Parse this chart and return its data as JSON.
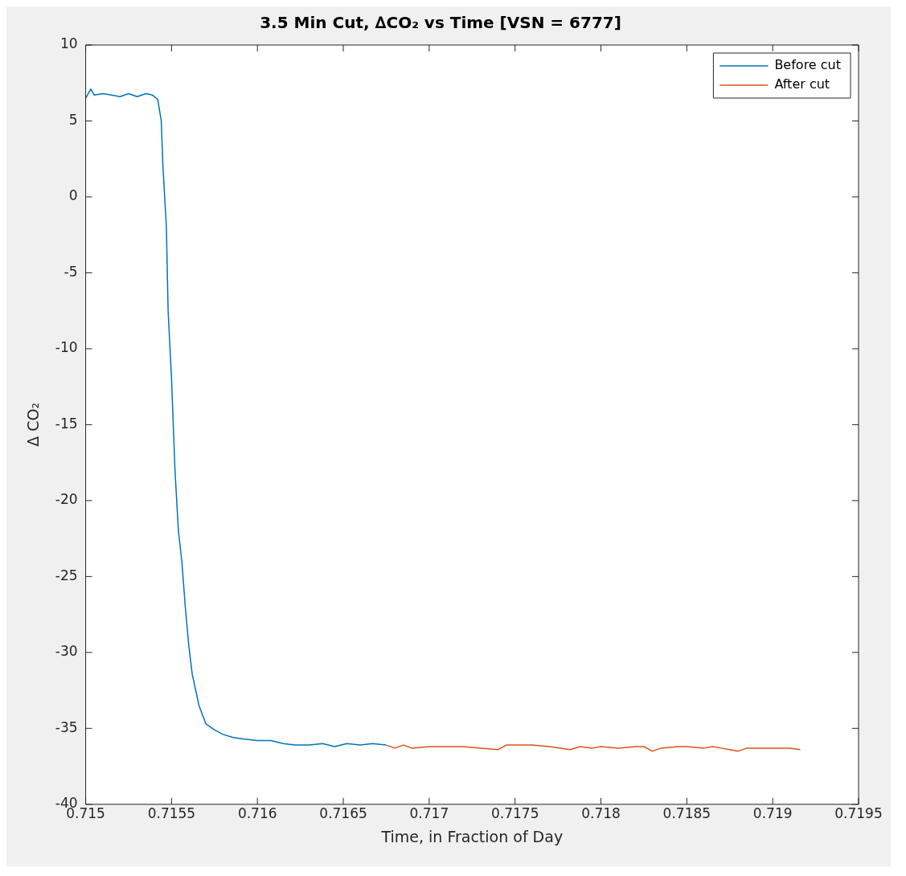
{
  "chart_data": {
    "type": "line",
    "title": "3.5 Min Cut, ∆CO₂ vs Time [VSN = 6777]",
    "xlabel": "Time, in Fraction of Day",
    "ylabel": "Δ CO₂",
    "xlim": [
      0.715,
      0.7195
    ],
    "xticks": [
      0.715,
      0.7155,
      0.716,
      0.7165,
      0.717,
      0.7175,
      0.718,
      0.7185,
      0.719,
      0.7195
    ],
    "ylim": [
      -40,
      10
    ],
    "yticks": [
      -40,
      -35,
      -30,
      -25,
      -20,
      -15,
      -10,
      -5,
      0,
      5,
      10
    ],
    "grid": false,
    "legend": "top right",
    "marker": "none",
    "line_style": "solid",
    "series": [
      {
        "name": "Before cut",
        "color": "#0072bd",
        "x": [
          0.715,
          0.71503,
          0.71505,
          0.7151,
          0.71515,
          0.7152,
          0.71525,
          0.7153,
          0.71535,
          0.71539,
          0.71542,
          0.71544,
          0.71545,
          0.71547,
          0.71548,
          0.7155,
          0.71552,
          0.71554,
          0.71556,
          0.71558,
          0.7156,
          0.71562,
          0.71566,
          0.7157,
          0.71575,
          0.7158,
          0.71586,
          0.71592,
          0.716,
          0.71608,
          0.71615,
          0.71622,
          0.7163,
          0.71638,
          0.71645,
          0.71652,
          0.7166,
          0.71667,
          0.71675
        ],
        "values": [
          6.5,
          7.1,
          6.7,
          6.8,
          6.7,
          6.6,
          6.8,
          6.6,
          6.8,
          6.7,
          6.4,
          5,
          2,
          -2,
          -7.5,
          -12,
          -18,
          -22,
          -24,
          -27,
          -29.5,
          -31.4,
          -33.5,
          -34.7,
          -35.1,
          -35.4,
          -35.6,
          -35.7,
          -35.8,
          -35.8,
          -36,
          -36.1,
          -36.1,
          -36,
          -36.2,
          -36,
          -36.1,
          -36,
          -36.1
        ]
      },
      {
        "name": "After cut",
        "color": "#d95319",
        "x": [
          0.71675,
          0.7168,
          0.71685,
          0.7169,
          0.717,
          0.7171,
          0.7172,
          0.7173,
          0.7174,
          0.71745,
          0.7175,
          0.7176,
          0.7177,
          0.71782,
          0.71788,
          0.71795,
          0.718,
          0.7181,
          0.7182,
          0.71825,
          0.7183,
          0.71835,
          0.71845,
          0.7185,
          0.7186,
          0.71865,
          0.7187,
          0.71875,
          0.7188,
          0.71885,
          0.7189,
          0.719,
          0.7191,
          0.71916
        ],
        "values": [
          -36.1,
          -36.3,
          -36.1,
          -36.3,
          -36.2,
          -36.2,
          -36.2,
          -36.3,
          -36.4,
          -36.1,
          -36.1,
          -36.1,
          -36.2,
          -36.4,
          -36.2,
          -36.3,
          -36.2,
          -36.3,
          -36.2,
          -36.2,
          -36.5,
          -36.3,
          -36.2,
          -36.2,
          -36.3,
          -36.2,
          -36.3,
          -36.4,
          -36.5,
          -36.3,
          -36.3,
          -36.3,
          -36.3,
          -36.4
        ]
      }
    ]
  }
}
